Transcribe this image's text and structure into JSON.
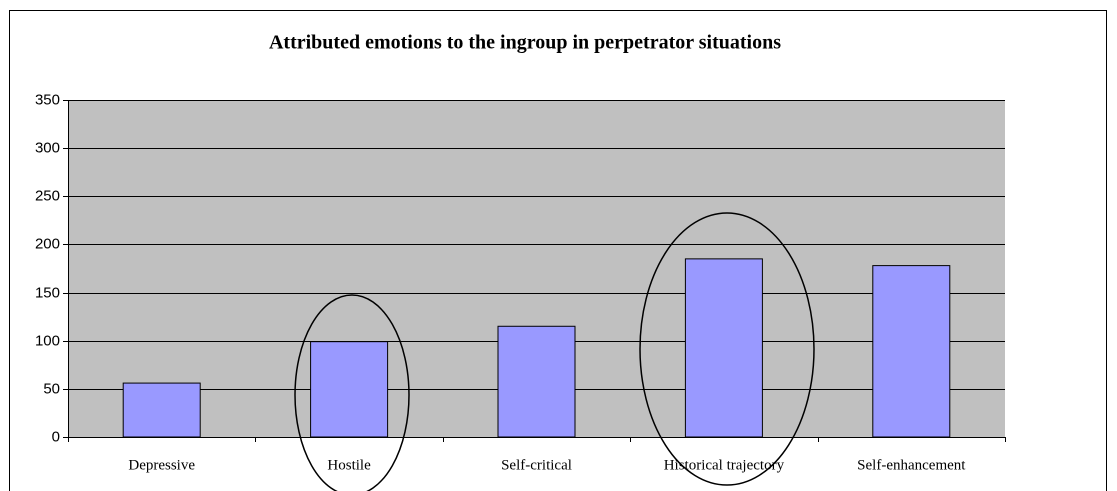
{
  "chart_data": {
    "type": "bar",
    "title": "Attributed emotions to the ingroup in perpetrator situations",
    "categories": [
      "Depressive",
      "Hostile",
      "Self-critical",
      "Historical trajectory",
      "Self-enhancement"
    ],
    "values": [
      56,
      99,
      115,
      185,
      178
    ],
    "color": "#9999ff",
    "ylim": [
      0,
      350
    ],
    "yticks": [
      0,
      50,
      100,
      150,
      200,
      250,
      300,
      350
    ],
    "grid": true
  }
}
